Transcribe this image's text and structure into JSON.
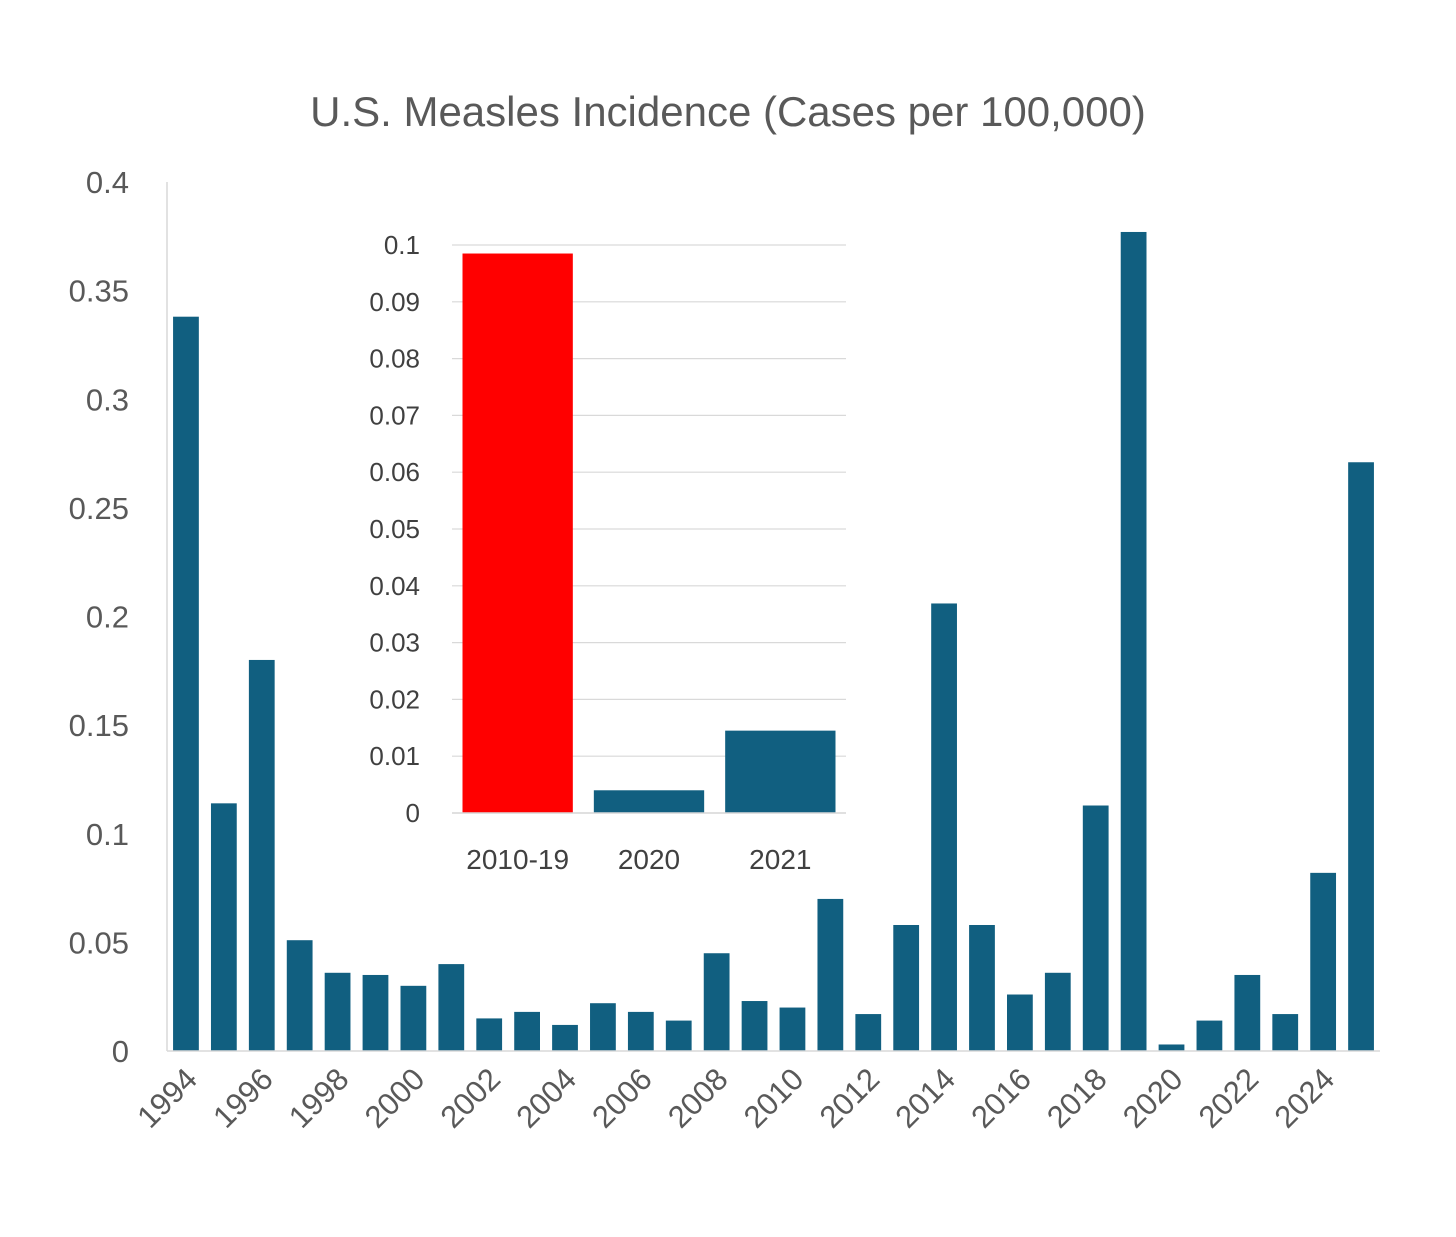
{
  "chart_data": [
    {
      "type": "bar",
      "title": "U.S. Measles Incidence (Cases per 100,000)",
      "xlabel": "",
      "ylabel": "",
      "ylim": [
        0,
        0.4
      ],
      "yticks": [
        "0",
        "0.05",
        "0.1",
        "0.15",
        "0.2",
        "0.25",
        "0.3",
        "0.35",
        "0.4"
      ],
      "xtick_labels": [
        "1994",
        "1996",
        "1998",
        "2000",
        "2002",
        "2004",
        "2006",
        "2008",
        "2010",
        "2012",
        "2014",
        "2016",
        "2018",
        "2020",
        "2022",
        "2024"
      ],
      "categories": [
        "1994",
        "1995",
        "1996",
        "1997",
        "1998",
        "1999",
        "2000",
        "2001",
        "2002",
        "2003",
        "2004",
        "2005",
        "2006",
        "2007",
        "2008",
        "2009",
        "2010",
        "2011",
        "2012",
        "2013",
        "2014",
        "2015",
        "2016",
        "2017",
        "2018",
        "2019",
        "2020",
        "2021",
        "2022",
        "2023",
        "2024",
        "2025"
      ],
      "values": [
        0.338,
        0.114,
        0.18,
        0.051,
        0.036,
        0.035,
        0.03,
        0.04,
        0.015,
        0.018,
        0.012,
        0.022,
        0.018,
        0.014,
        0.045,
        0.023,
        0.02,
        0.07,
        0.017,
        0.058,
        0.206,
        0.058,
        0.026,
        0.036,
        0.113,
        0.377,
        0.003,
        0.014,
        0.035,
        0.017,
        0.082,
        0.271
      ],
      "grid": false,
      "bar_color": "#115F80"
    },
    {
      "type": "bar",
      "title": "",
      "categories": [
        "2010-19",
        "2020",
        "2021"
      ],
      "values": [
        0.0985,
        0.004,
        0.0145
      ],
      "colors": [
        "#FF0000",
        "#115F80",
        "#115F80"
      ],
      "ylim": [
        0,
        0.1
      ],
      "yticks": [
        "0",
        "0.01",
        "0.02",
        "0.03",
        "0.04",
        "0.05",
        "0.06",
        "0.07",
        "0.08",
        "0.09",
        "0.1"
      ],
      "grid": true
    }
  ]
}
